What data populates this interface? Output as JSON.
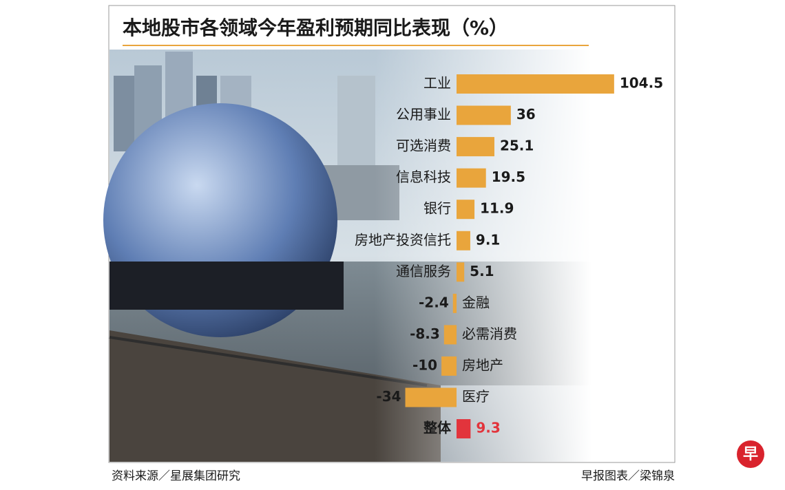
{
  "chart_data": {
    "type": "bar",
    "orientation": "horizontal",
    "title": "本地股市各领域今年盈利预期同比表现（%）",
    "categories": [
      "工业",
      "公用事业",
      "可选消费",
      "信息科技",
      "银行",
      "房地产投资信托",
      "通信服务",
      "金融",
      "必需消费",
      "房地产",
      "医疗",
      "整体"
    ],
    "values": [
      104.5,
      36,
      25.1,
      19.5,
      11.9,
      9.1,
      5.1,
      -2.4,
      -8.3,
      -10,
      -34,
      9.3
    ],
    "colors": [
      "#e9a53c",
      "#e9a53c",
      "#e9a53c",
      "#e9a53c",
      "#e9a53c",
      "#e9a53c",
      "#e9a53c",
      "#e9a53c",
      "#e9a53c",
      "#e9a53c",
      "#e9a53c",
      "#e2343c"
    ],
    "source": "资料来源／星展集团研究",
    "credit": "早报图表／梁锦泉",
    "logo": "早"
  }
}
